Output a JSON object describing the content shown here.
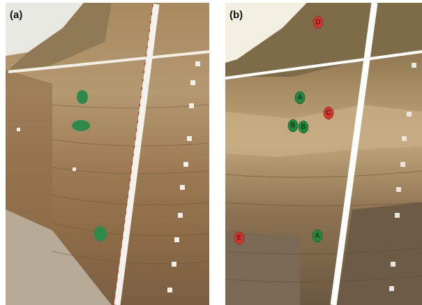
{
  "panels": [
    {
      "label": "(a)"
    },
    {
      "label": "(b)",
      "markers": [
        {
          "label": "D",
          "color": "#d9342b"
        },
        {
          "label": "A",
          "color": "#1f8a3c"
        },
        {
          "label": "C",
          "color": "#d9342b"
        },
        {
          "label": "B",
          "color": "#1f8a3c"
        },
        {
          "label": "B",
          "color": "#1f8a3c"
        },
        {
          "label": "E",
          "color": "#d9342b"
        },
        {
          "label": "A",
          "color": "#1f8a3c"
        }
      ]
    }
  ]
}
